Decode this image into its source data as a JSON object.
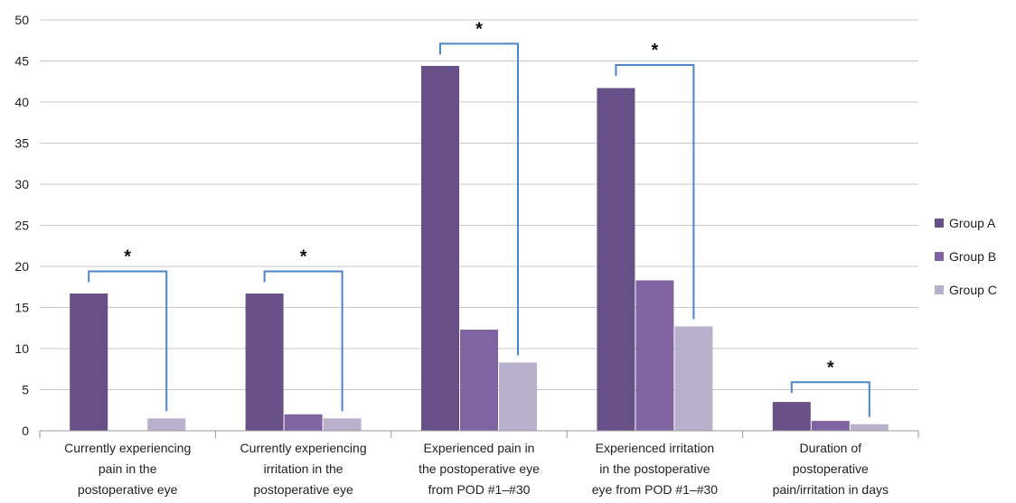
{
  "chart_data": {
    "type": "bar",
    "title": "",
    "xlabel": "",
    "ylabel": "",
    "ylim": [
      0,
      50
    ],
    "yticks": [
      0,
      5,
      10,
      15,
      20,
      25,
      30,
      35,
      40,
      45,
      50
    ],
    "grid": true,
    "legend_position": "right",
    "categories": [
      [
        "Currently experiencing",
        "pain in the",
        "postoperative eye"
      ],
      [
        "Currently experiencing",
        "irritation in the",
        "postoperative eye"
      ],
      [
        "Experienced pain in",
        "the postoperative eye",
        "from POD #1–#30"
      ],
      [
        "Experienced irritation",
        "in the postoperative",
        "eye from POD #1–#30"
      ],
      [
        "Duration of",
        "postoperative",
        "pain/irritation in days"
      ]
    ],
    "series": [
      {
        "name": "Group A",
        "color": "#674f87",
        "values": [
          16.7,
          16.7,
          44.4,
          41.7,
          3.5
        ]
      },
      {
        "name": "Group B",
        "color": "#8064a2",
        "values": [
          0,
          2.0,
          12.3,
          18.3,
          1.2
        ]
      },
      {
        "name": "Group C",
        "color": "#b9b0cb",
        "values": [
          1.5,
          1.5,
          8.3,
          12.7,
          0.8
        ]
      }
    ],
    "significance": [
      {
        "category_index": 0,
        "from_series": 0,
        "to_series": 2,
        "bracket_y": 19.4,
        "label": "*"
      },
      {
        "category_index": 1,
        "from_series": 0,
        "to_series": 2,
        "bracket_y": 19.4,
        "label": "*"
      },
      {
        "category_index": 2,
        "from_series": 0,
        "to_series": 2,
        "bracket_y": 47.1,
        "label": "*"
      },
      {
        "category_index": 3,
        "from_series": 0,
        "to_series": 2,
        "bracket_y": 44.5,
        "label": "*"
      },
      {
        "category_index": 4,
        "from_series": 0,
        "to_series": 2,
        "bracket_y": 5.9,
        "label": "*"
      }
    ],
    "bracket_color": "#4a86c8"
  }
}
